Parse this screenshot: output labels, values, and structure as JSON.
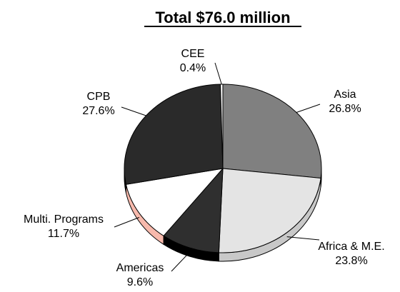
{
  "chart_data": {
    "type": "pie",
    "title": "Total $76.0 million",
    "slices": [
      {
        "label": "Asia",
        "value": 26.8,
        "value_label": "26.8%",
        "color": "#808080",
        "side_color": "#666666"
      },
      {
        "label": "Africa & M.E.",
        "value": 23.8,
        "value_label": "23.8%",
        "color": "#e4e4e4",
        "side_color": "#c8c8c8"
      },
      {
        "label": "Americas",
        "value": 9.6,
        "value_label": "9.6%",
        "color": "#2f2f2f",
        "side_color": "#000000"
      },
      {
        "label": "Multi. Programs",
        "value": 11.7,
        "value_label": "11.7%",
        "color": "#ffffff",
        "side_color": "#f7b9ac"
      },
      {
        "label": "CPB",
        "value": 27.6,
        "value_label": "27.6%",
        "color": "#2a2a2a",
        "side_color": "#111111"
      },
      {
        "label": "CEE",
        "value": 0.4,
        "value_label": "0.4%",
        "color": "#ffffff",
        "side_color": "#dddddd"
      }
    ],
    "start": "12 o'clock",
    "direction": "clockwise",
    "style": "3D pie",
    "legend": "none"
  }
}
